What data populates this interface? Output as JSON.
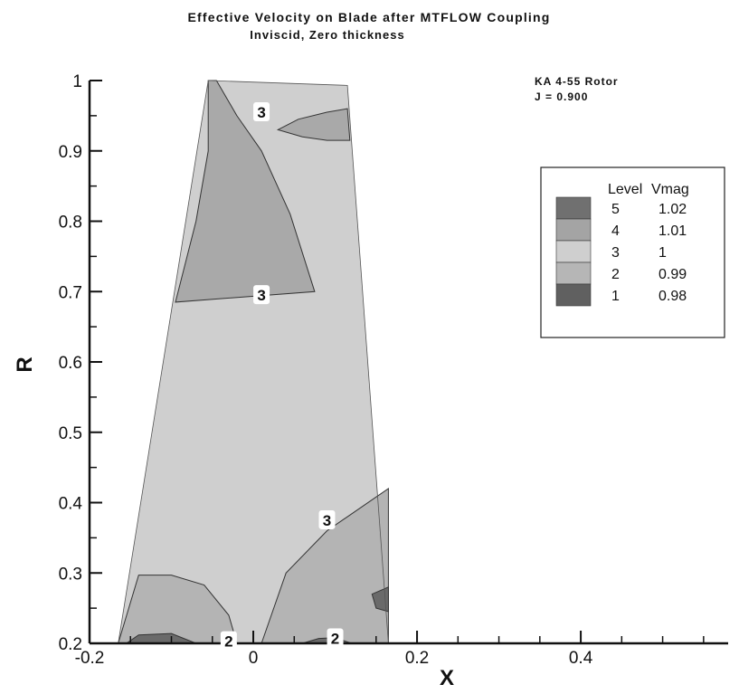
{
  "chart_data": {
    "type": "contour",
    "title": "Effective Velocity on Blade after MTFLOW Coupling",
    "subtitle": "Inviscid, Zero thickness",
    "xlabel": "X",
    "ylabel": "R",
    "xlim": [
      -0.2,
      0.58
    ],
    "ylim": [
      0.2,
      1.0
    ],
    "x_ticks": [
      {
        "value": -0.2,
        "label": "-0.2"
      },
      {
        "value": 0,
        "label": "0"
      },
      {
        "value": 0.2,
        "label": "0.2"
      },
      {
        "value": 0.4,
        "label": "0.4"
      }
    ],
    "y_ticks": [
      {
        "value": 0.2,
        "label": "0.2"
      },
      {
        "value": 0.3,
        "label": "0.3"
      },
      {
        "value": 0.4,
        "label": "0.4"
      },
      {
        "value": 0.5,
        "label": "0.5"
      },
      {
        "value": 0.6,
        "label": "0.6"
      },
      {
        "value": 0.7,
        "label": "0.7"
      },
      {
        "value": 0.8,
        "label": "0.8"
      },
      {
        "value": 0.9,
        "label": "0.9"
      },
      {
        "value": 1.0,
        "label": "1"
      }
    ],
    "annotation": {
      "line1": "KA 4-55 Rotor",
      "line2": "J = 0.900"
    },
    "legend": {
      "placement": "top-right",
      "header_level": "Level",
      "header_value": "Vmag",
      "entries": [
        {
          "level": "5",
          "value": "1.02",
          "color": "#707070"
        },
        {
          "level": "4",
          "value": "1.01",
          "color": "#a4a4a4"
        },
        {
          "level": "3",
          "value": "1",
          "color": "#cfcfcf"
        },
        {
          "level": "2",
          "value": "0.99",
          "color": "#b6b6b6"
        },
        {
          "level": "1",
          "value": "0.98",
          "color": "#606060"
        }
      ]
    },
    "blade_outline": [
      [
        -0.055,
        1.0
      ],
      [
        0.115,
        0.993
      ],
      [
        0.165,
        0.2
      ],
      [
        -0.165,
        0.2
      ]
    ],
    "regions": [
      {
        "name": "mid-level-tip-left",
        "color": "#a9a9a9",
        "points": [
          [
            -0.045,
            1.0
          ],
          [
            -0.02,
            0.95
          ],
          [
            0.01,
            0.9
          ],
          [
            0.045,
            0.81
          ],
          [
            0.075,
            0.7
          ],
          [
            -0.095,
            0.685
          ],
          [
            -0.07,
            0.8
          ],
          [
            -0.055,
            0.9
          ],
          [
            -0.055,
            1.0
          ]
        ]
      },
      {
        "name": "mid-level-tip-right",
        "color": "#a9a9a9",
        "points": [
          [
            0.03,
            0.93
          ],
          [
            0.055,
            0.945
          ],
          [
            0.09,
            0.955
          ],
          [
            0.115,
            0.96
          ],
          [
            0.118,
            0.915
          ],
          [
            0.09,
            0.915
          ],
          [
            0.06,
            0.92
          ],
          [
            0.03,
            0.93
          ]
        ]
      },
      {
        "name": "low-level-root-right",
        "color": "#b4b4b4",
        "points": [
          [
            0.01,
            0.2
          ],
          [
            0.04,
            0.3
          ],
          [
            0.09,
            0.36
          ],
          [
            0.165,
            0.42
          ],
          [
            0.165,
            0.2
          ]
        ]
      },
      {
        "name": "low-level-root-left",
        "color": "#b4b4b4",
        "points": [
          [
            -0.165,
            0.2
          ],
          [
            -0.14,
            0.297
          ],
          [
            -0.1,
            0.297
          ],
          [
            -0.06,
            0.283
          ],
          [
            -0.03,
            0.24
          ],
          [
            -0.02,
            0.2
          ]
        ]
      },
      {
        "name": "lowest-root-left",
        "color": "#6a6a6a",
        "points": [
          [
            -0.155,
            0.2
          ],
          [
            -0.14,
            0.212
          ],
          [
            -0.1,
            0.214
          ],
          [
            -0.07,
            0.2
          ]
        ]
      },
      {
        "name": "lowest-root-mid",
        "color": "#6a6a6a",
        "points": [
          [
            0.06,
            0.2
          ],
          [
            0.08,
            0.207
          ],
          [
            0.1,
            0.208
          ],
          [
            0.12,
            0.2
          ]
        ]
      },
      {
        "name": "lowest-trailing-edge",
        "color": "#6a6a6a",
        "points": [
          [
            0.165,
            0.28
          ],
          [
            0.145,
            0.27
          ],
          [
            0.15,
            0.25
          ],
          [
            0.165,
            0.245
          ]
        ]
      }
    ],
    "contour_labels": [
      {
        "text": "3",
        "x": 0.01,
        "y": 0.955
      },
      {
        "text": "3",
        "x": 0.01,
        "y": 0.695
      },
      {
        "text": "3",
        "x": 0.09,
        "y": 0.375
      },
      {
        "text": "2",
        "x": 0.1,
        "y": 0.207
      },
      {
        "text": "2",
        "x": -0.03,
        "y": 0.203
      }
    ]
  }
}
